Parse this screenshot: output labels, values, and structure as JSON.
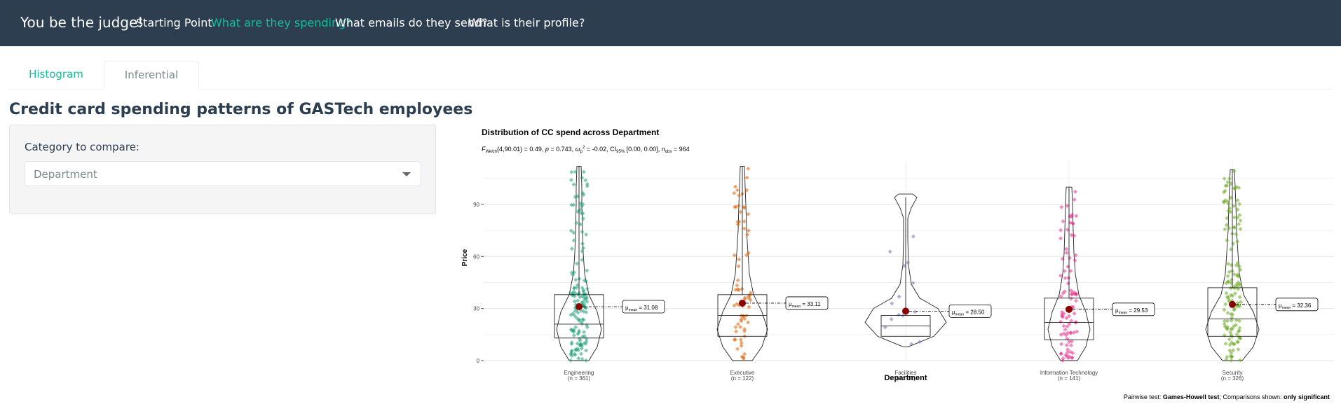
{
  "navbar": {
    "brand": "You be the judge!",
    "links": [
      "Starting Point",
      "What are they spending?",
      "What emails do they send?",
      "What is their profile?"
    ],
    "active_index": 1
  },
  "tabs": [
    "Histogram",
    "Inferential"
  ],
  "active_tab": 1,
  "page_title": "Credit card spending patterns of GASTech employees",
  "sidebar": {
    "label": "Category to compare:",
    "select_value": "Department"
  },
  "colors": {
    "navbar": "#2c3e50",
    "accent": "#18bc9c",
    "mean_point": "#8b0000",
    "series": [
      "#1b9e77",
      "#d95f02",
      "#7570b3",
      "#e7298a",
      "#66a61e"
    ]
  },
  "chart_data": {
    "type": "violin-box-jitter",
    "title": "Distribution of CC spend across Department",
    "subtitle": "F_Welch(4,90.01) = 0.49, p = 0.743, ω_p^2 = -0.02, CI95% [0.00, 0.00], n_obs = 964",
    "subtitle_parts": {
      "f": "F",
      "f_sub": "Welch",
      "stat": "(4,90.01) = 0.49, ",
      "p": "p",
      "p_val": " = 0.743, ",
      "omega": "ω",
      "omega_sub": "p",
      "omega_sup": "2",
      "omega_val": " = -0.02, CI",
      "ci_sub": "95%",
      "ci_val": " [0.00, 0.00], ",
      "n": "n",
      "n_sub": "obs",
      "n_val": " = 964"
    },
    "xlabel": "Department",
    "ylabel": "Price",
    "ylim": [
      0,
      100
    ],
    "yticks": [
      0,
      30,
      60,
      90
    ],
    "grid": true,
    "categories": [
      {
        "name": "Engineering",
        "n_label": "(n = 361)",
        "mean": 31.08,
        "mean_label": "31.08",
        "q1": 13,
        "median": 21,
        "q3": 38,
        "min": 0,
        "max": 112
      },
      {
        "name": "Executive",
        "n_label": "(n = 122)",
        "mean": 33.11,
        "mean_label": "33.11",
        "q1": 14,
        "median": 26,
        "q3": 38,
        "min": 0,
        "max": 112
      },
      {
        "name": "Facilities",
        "n_label": "(n = 14)",
        "mean": 28.5,
        "mean_label": "28.50",
        "q1": 14,
        "median": 20,
        "q3": 26,
        "min": 8,
        "max": 94
      },
      {
        "name": "Information Technology",
        "n_label": "(n = 141)",
        "mean": 29.53,
        "mean_label": "29.53",
        "q1": 12,
        "median": 22,
        "q3": 36,
        "min": 0,
        "max": 100
      },
      {
        "name": "Security",
        "n_label": "(n = 326)",
        "mean": 32.36,
        "mean_label": "32.36",
        "q1": 14,
        "median": 24,
        "q3": 42,
        "min": 0,
        "max": 110
      }
    ],
    "mean_label_prefix": "μ",
    "mean_label_sub": "mean",
    "caption_prefix": "Pairwise test: ",
    "caption_test": "Games-Howell test",
    "caption_mid": "; Comparisons shown: ",
    "caption_shown": "only significant"
  }
}
